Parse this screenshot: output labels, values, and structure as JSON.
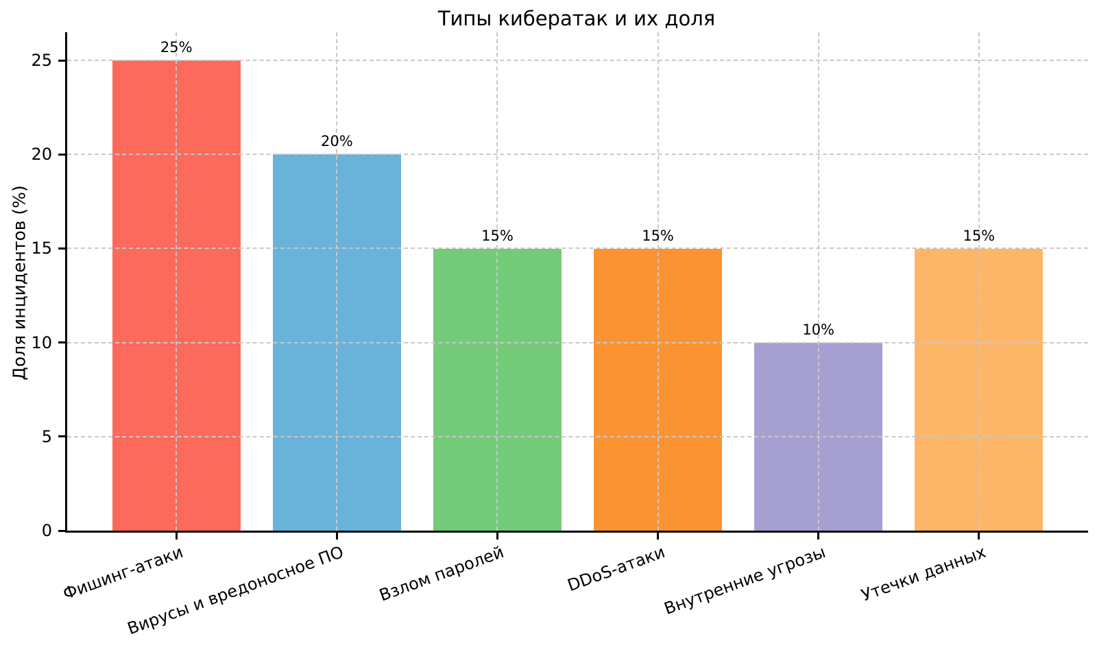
{
  "chart_data": {
    "type": "bar",
    "title": "Типы кибератак и их доля",
    "xlabel": "",
    "ylabel": "Доля инцидентов (%)",
    "categories": [
      "Фишинг-атаки",
      "Вирусы и вредоносное ПО",
      "Взлом паролей",
      "DDoS-атаки",
      "Внутренние угрозы",
      "Утечки данных"
    ],
    "values": [
      25,
      20,
      15,
      15,
      10,
      15
    ],
    "bar_labels": [
      "25%",
      "20%",
      "15%",
      "15%",
      "10%",
      "15%"
    ],
    "bar_colors": [
      "#FC6A5B",
      "#69B3DB",
      "#74CB79",
      "#FB9332",
      "#A6A0D2",
      "#FDB567"
    ],
    "yticks": [
      0,
      5,
      10,
      15,
      20,
      25
    ],
    "ylim": [
      0,
      26.5
    ],
    "grid": "both",
    "grid_style": "dashed",
    "grid_color": "#c9c9c9",
    "grid_above_bars": true,
    "spine_color": "#000000",
    "background_color": "#ffffff",
    "legend_position": "none",
    "xtick_rotation_deg": 20,
    "bar_width_fraction": 0.8
  }
}
